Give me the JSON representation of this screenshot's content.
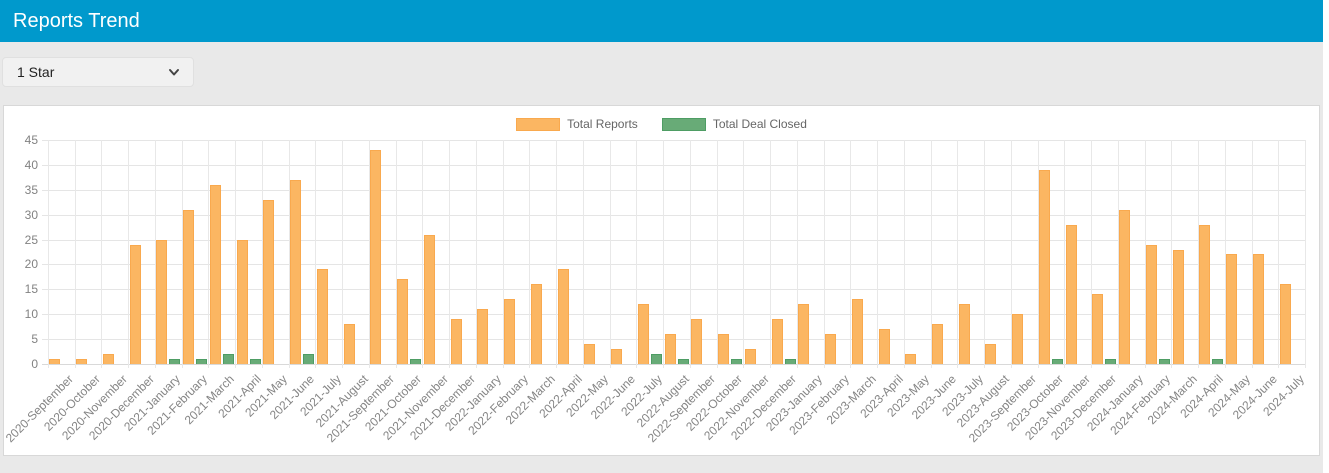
{
  "header": {
    "title": "Reports Trend"
  },
  "filter": {
    "selected": "1 Star"
  },
  "colors": {
    "header_bg": "#0099cc",
    "body_bg": "#e9e9e9",
    "panel_bg": "#ffffff",
    "grid": "#e5e5e5",
    "axis_line": "#d9d9d9",
    "tick_text": "#828282",
    "legend_text": "#666666"
  },
  "chart_data": {
    "type": "bar",
    "title": "",
    "xlabel": "",
    "ylabel": "",
    "ylim": [
      0,
      45
    ],
    "ytick_step": 5,
    "grid": true,
    "legend_position": "top",
    "categories": [
      "2020-September",
      "2020-October",
      "2020-November",
      "2020-December",
      "2021-January",
      "2021-February",
      "2021-March",
      "2021-April",
      "2021-May",
      "2021-June",
      "2021-July",
      "2021-August",
      "2021-September",
      "2021-October",
      "2021-November",
      "2021-December",
      "2022-January",
      "2022-February",
      "2022-March",
      "2022-April",
      "2022-May",
      "2022-June",
      "2022-July",
      "2022-August",
      "2022-September",
      "2022-October",
      "2022-November",
      "2022-December",
      "2023-January",
      "2023-February",
      "2023-March",
      "2023-April",
      "2023-May",
      "2023-June",
      "2023-July",
      "2023-August",
      "2023-September",
      "2023-October",
      "2023-November",
      "2023-December",
      "2024-January",
      "2024-February",
      "2024-March",
      "2024-April",
      "2024-May",
      "2024-June",
      "2024-July"
    ],
    "series": [
      {
        "name": "Total Reports",
        "color": "#fbb662",
        "border_color": "#f9a94e",
        "values": [
          1,
          1,
          2,
          24,
          25,
          31,
          36,
          25,
          33,
          37,
          19,
          8,
          43,
          17,
          26,
          9,
          11,
          13,
          16,
          19,
          4,
          3,
          12,
          6,
          9,
          6,
          3,
          9,
          12,
          6,
          13,
          7,
          2,
          8,
          12,
          4,
          10,
          39,
          28,
          14,
          31,
          24,
          23,
          28,
          22,
          22,
          16
        ]
      },
      {
        "name": "Total Deal Closed",
        "color": "#68ab77",
        "border_color": "#4e9d64",
        "values": [
          0,
          0,
          0,
          0,
          1,
          1,
          2,
          1,
          0,
          2,
          0,
          0,
          0,
          1,
          0,
          0,
          0,
          0,
          0,
          0,
          0,
          0,
          2,
          1,
          0,
          1,
          0,
          1,
          0,
          0,
          0,
          0,
          0,
          0,
          0,
          0,
          0,
          1,
          0,
          1,
          0,
          1,
          0,
          1,
          0,
          0,
          0
        ]
      }
    ]
  }
}
